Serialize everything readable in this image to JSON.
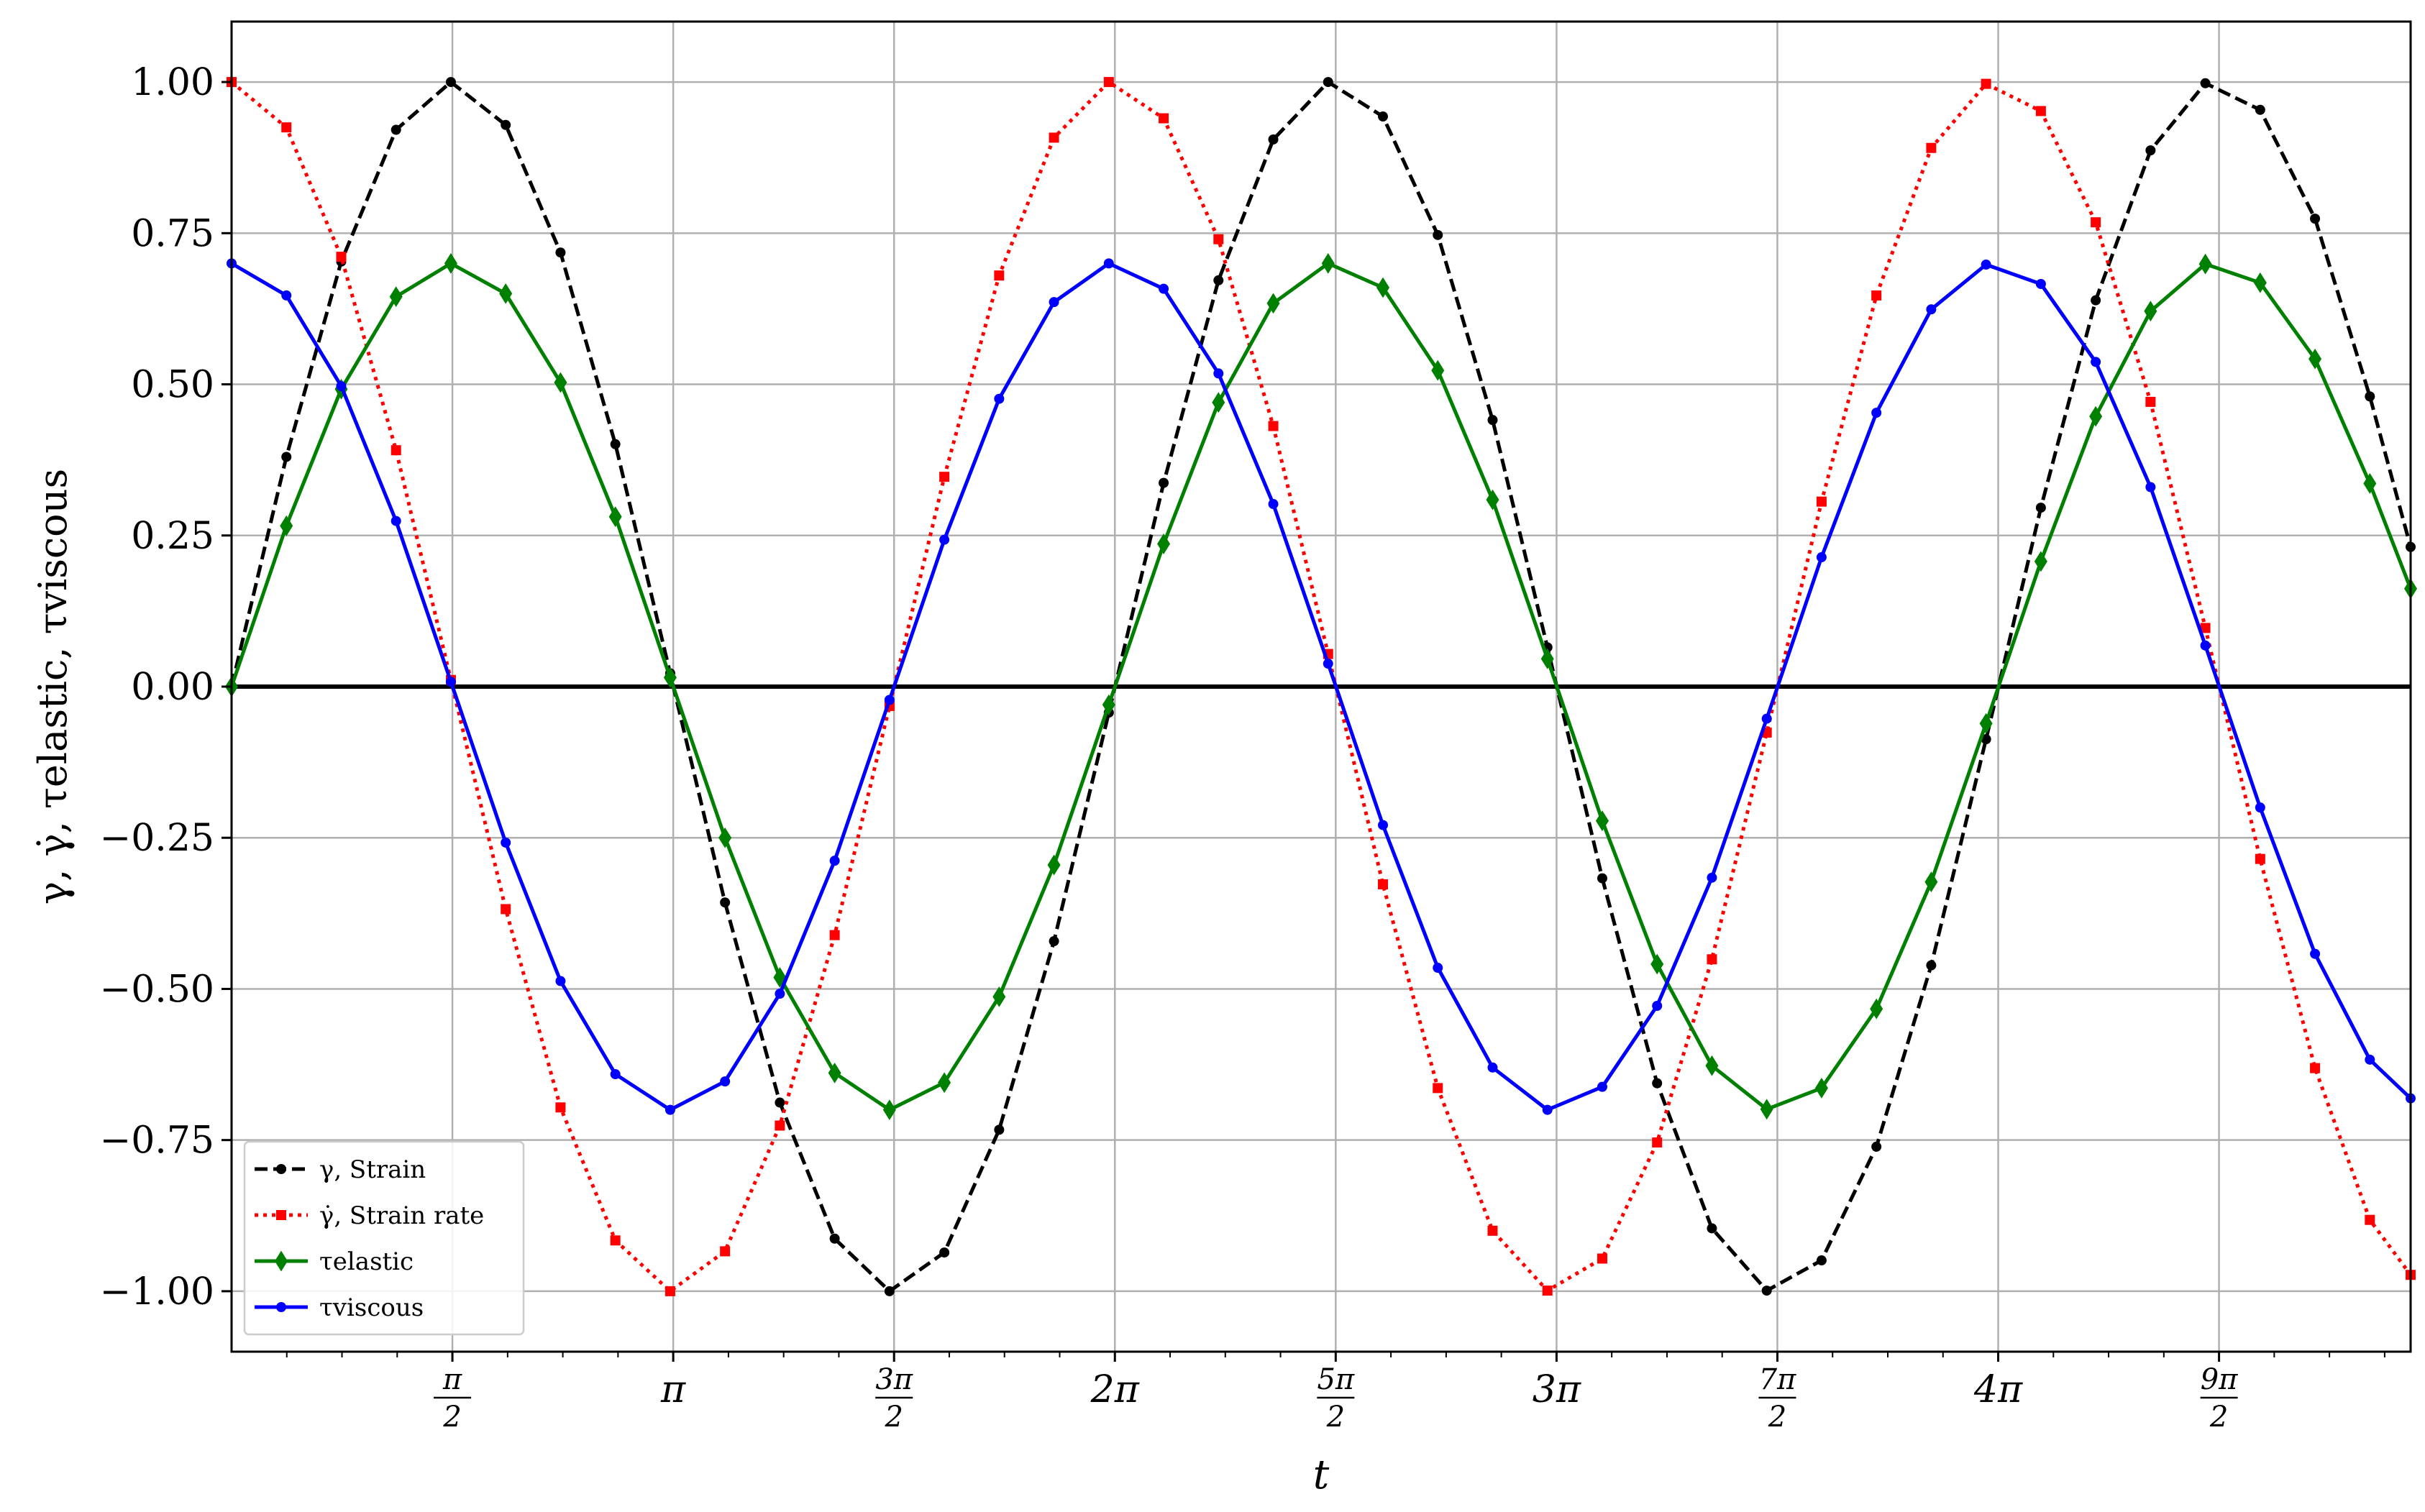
{
  "chart_data": {
    "type": "line",
    "title": "",
    "xlabel": "t",
    "ylabel": "γ, γ̇, τelastic, τviscous",
    "xlim": [
      0.0,
      15.5
    ],
    "ylim": [
      -1.1,
      1.1
    ],
    "grid": true,
    "legend_position": "lower-left",
    "x_ticks": [
      {
        "value": 1.5708,
        "num": "π",
        "den": "2",
        "text": ""
      },
      {
        "value": 3.1416,
        "num": "",
        "den": "",
        "text": "π"
      },
      {
        "value": 4.7124,
        "num": "3π",
        "den": "2",
        "text": ""
      },
      {
        "value": 6.2832,
        "num": "",
        "den": "",
        "text": "2π"
      },
      {
        "value": 7.854,
        "num": "5π",
        "den": "2",
        "text": ""
      },
      {
        "value": 9.4248,
        "num": "",
        "den": "",
        "text": "3π"
      },
      {
        "value": 10.9956,
        "num": "7π",
        "den": "2",
        "text": ""
      },
      {
        "value": 12.5664,
        "num": "",
        "den": "",
        "text": "4π"
      },
      {
        "value": 14.1372,
        "num": "9π",
        "den": "2",
        "text": ""
      }
    ],
    "y_ticks": [
      {
        "value": 1.0,
        "label": "1.00"
      },
      {
        "value": 0.75,
        "label": "0.75"
      },
      {
        "value": 0.5,
        "label": "0.50"
      },
      {
        "value": 0.25,
        "label": "0.25"
      },
      {
        "value": 0.0,
        "label": "0.00"
      },
      {
        "value": -0.25,
        "label": "−0.25"
      },
      {
        "value": -0.5,
        "label": "−0.50"
      },
      {
        "value": -0.75,
        "label": "−0.75"
      },
      {
        "value": -1.0,
        "label": "−1.00"
      }
    ],
    "series": [
      {
        "key": "strain",
        "name": "γ, Strain",
        "color": "#000000",
        "dash": "dashed",
        "marker": "circle",
        "x": [
          0.0,
          0.39,
          0.78,
          1.17,
          1.56,
          1.95,
          2.34,
          2.73,
          3.12,
          3.51,
          3.9,
          4.29,
          4.68,
          5.07,
          5.46,
          5.85,
          6.24,
          6.63,
          7.02,
          7.41,
          7.8,
          8.19,
          8.58,
          8.97,
          9.36,
          9.75,
          10.14,
          10.53,
          10.92,
          11.31,
          11.7,
          12.09,
          12.48,
          12.87,
          13.26,
          13.65,
          14.04,
          14.43,
          14.82,
          15.21,
          15.5
        ],
        "y": [
          0.0,
          0.38,
          0.703,
          0.921,
          1.0,
          0.929,
          0.718,
          0.401,
          0.022,
          -0.357,
          -0.688,
          -0.913,
          -1.0,
          -0.936,
          -0.733,
          -0.421,
          -0.043,
          0.337,
          0.672,
          0.905,
          1.0,
          0.943,
          0.747,
          0.441,
          0.065,
          -0.317,
          -0.656,
          -0.896,
          -0.999,
          -0.949,
          -0.761,
          -0.461,
          -0.087,
          0.296,
          0.639,
          0.887,
          0.998,
          0.954,
          0.774,
          0.48,
          0.231
        ]
      },
      {
        "key": "strain_rate",
        "name": "γ̇, Strain rate",
        "color": "#ff0000",
        "dash": "dotted",
        "marker": "square",
        "x": [
          0.0,
          0.39,
          0.78,
          1.17,
          1.56,
          1.95,
          2.34,
          2.73,
          3.12,
          3.51,
          3.9,
          4.29,
          4.68,
          5.07,
          5.46,
          5.85,
          6.24,
          6.63,
          7.02,
          7.41,
          7.8,
          8.19,
          8.58,
          8.97,
          9.36,
          9.75,
          10.14,
          10.53,
          10.92,
          11.31,
          11.7,
          12.09,
          12.48,
          12.87,
          13.26,
          13.65,
          14.04,
          14.43,
          14.82,
          15.21,
          15.5
        ],
        "y": [
          1.0,
          0.925,
          0.711,
          0.391,
          0.011,
          -0.368,
          -0.696,
          -0.916,
          -1.0,
          -0.934,
          -0.726,
          -0.411,
          -0.032,
          0.347,
          0.68,
          0.908,
          1.0,
          0.94,
          0.74,
          0.431,
          0.054,
          -0.327,
          -0.664,
          -0.9,
          -0.999,
          -0.946,
          -0.754,
          -0.451,
          -0.076,
          0.306,
          0.647,
          0.891,
          0.997,
          0.952,
          0.768,
          0.471,
          0.097,
          -0.285,
          -0.631,
          -0.882,
          -0.973
        ]
      },
      {
        "key": "tau_elastic",
        "name": "τelastic",
        "color": "#008000",
        "dash": "solid",
        "marker": "diamond",
        "x": [
          0.0,
          0.39,
          0.78,
          1.17,
          1.56,
          1.95,
          2.34,
          2.73,
          3.12,
          3.51,
          3.9,
          4.29,
          4.68,
          5.07,
          5.46,
          5.85,
          6.24,
          6.63,
          7.02,
          7.41,
          7.8,
          8.19,
          8.58,
          8.97,
          9.36,
          9.75,
          10.14,
          10.53,
          10.92,
          11.31,
          11.7,
          12.09,
          12.48,
          12.87,
          13.26,
          13.65,
          14.04,
          14.43,
          14.82,
          15.21,
          15.5
        ],
        "y": [
          0.0,
          0.266,
          0.492,
          0.645,
          0.7,
          0.65,
          0.503,
          0.281,
          0.015,
          -0.25,
          -0.481,
          -0.639,
          -0.7,
          -0.655,
          -0.513,
          -0.295,
          -0.03,
          0.236,
          0.47,
          0.634,
          0.7,
          0.66,
          0.523,
          0.309,
          0.046,
          -0.222,
          -0.459,
          -0.627,
          -0.699,
          -0.664,
          -0.533,
          -0.323,
          -0.061,
          0.207,
          0.447,
          0.621,
          0.699,
          0.668,
          0.542,
          0.336,
          0.162
        ]
      },
      {
        "key": "tau_viscous",
        "name": "τviscous",
        "color": "#0000ff",
        "dash": "solid",
        "marker": "circle",
        "x": [
          0.0,
          0.39,
          0.78,
          1.17,
          1.56,
          1.95,
          2.34,
          2.73,
          3.12,
          3.51,
          3.9,
          4.29,
          4.68,
          5.07,
          5.46,
          5.85,
          6.24,
          6.63,
          7.02,
          7.41,
          7.8,
          8.19,
          8.58,
          8.97,
          9.36,
          9.75,
          10.14,
          10.53,
          10.92,
          11.31,
          11.7,
          12.09,
          12.48,
          12.87,
          13.26,
          13.65,
          14.04,
          14.43,
          14.82,
          15.21,
          15.5
        ],
        "y": [
          0.7,
          0.647,
          0.497,
          0.274,
          0.008,
          -0.258,
          -0.487,
          -0.641,
          -0.7,
          -0.653,
          -0.508,
          -0.288,
          -0.022,
          0.243,
          0.476,
          0.636,
          0.7,
          0.658,
          0.518,
          0.302,
          0.038,
          -0.229,
          -0.465,
          -0.63,
          -0.7,
          -0.662,
          -0.528,
          -0.316,
          -0.053,
          0.214,
          0.453,
          0.624,
          0.698,
          0.666,
          0.537,
          0.33,
          0.068,
          -0.2,
          -0.442,
          -0.617,
          -0.681
        ]
      }
    ]
  }
}
